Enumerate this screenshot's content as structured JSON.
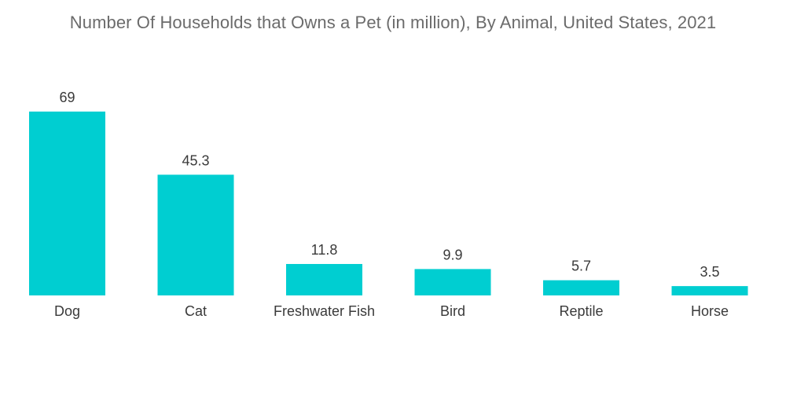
{
  "chart_data": {
    "type": "bar",
    "title": "Number Of Households that Owns a Pet (in million), By Animal, United States, 2021",
    "categories": [
      "Dog",
      "Cat",
      "Freshwater Fish",
      "Bird",
      "Reptile",
      "Horse"
    ],
    "values": [
      69,
      45.3,
      11.8,
      9.9,
      5.7,
      3.5
    ],
    "value_labels": [
      "69",
      "45.3",
      "11.8",
      "9.9",
      "5.7",
      "3.5"
    ],
    "xlabel": "",
    "ylabel": "",
    "ylim": [
      0,
      69
    ],
    "grid": false,
    "legend": "none",
    "bar_color": "#00ced1"
  }
}
